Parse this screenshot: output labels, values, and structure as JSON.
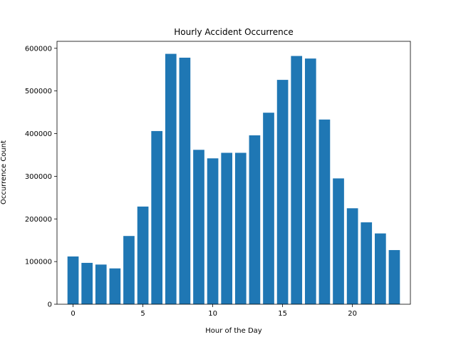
{
  "chart_data": {
    "type": "bar",
    "title": "Hourly Accident Occurrence",
    "xlabel": "Hour of the Day",
    "ylabel": "Occurrence Count",
    "categories": [
      0,
      1,
      2,
      3,
      4,
      5,
      6,
      7,
      8,
      9,
      10,
      11,
      12,
      13,
      14,
      15,
      16,
      17,
      18,
      19,
      20,
      21,
      22,
      23
    ],
    "values": [
      112000,
      97000,
      93000,
      84000,
      160000,
      229000,
      406000,
      587000,
      578000,
      362000,
      342000,
      355000,
      355000,
      396000,
      449000,
      526000,
      582000,
      576000,
      433000,
      295000,
      225000,
      192000,
      166000,
      127000
    ],
    "bar_color": "#1f77b4",
    "xlim": [
      -1.15,
      24.15
    ],
    "ylim": [
      0,
      616350
    ],
    "xticks": [
      0,
      5,
      10,
      15,
      20
    ],
    "yticks": [
      0,
      100000,
      200000,
      300000,
      400000,
      500000,
      600000
    ],
    "grid": false,
    "legend": null
  }
}
